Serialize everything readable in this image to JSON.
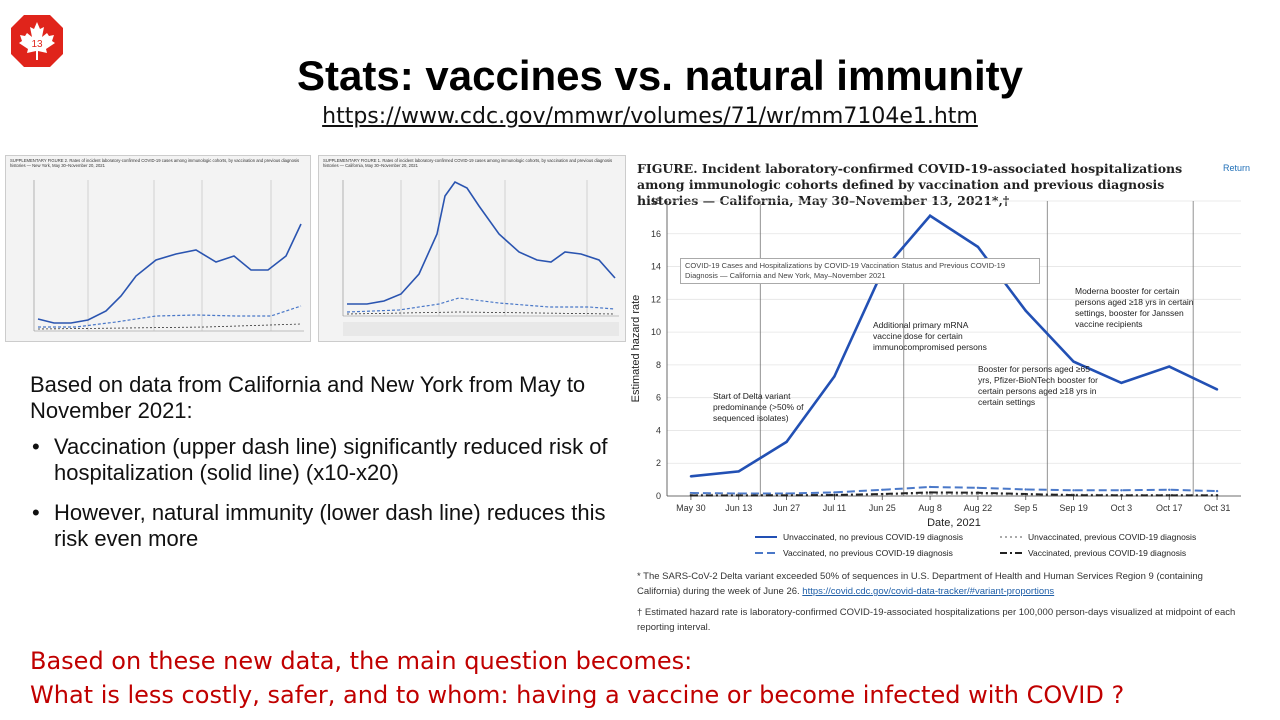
{
  "slide": {
    "number": "13",
    "title": "Stats: vaccines vs. natural immunity",
    "url": "https://www.cdc.gov/mmwr/volumes/71/wr/mm7104e1.htm",
    "summary_intro": "Based on data from California and New York from May to November 2021:",
    "bullets": [
      "Vaccination (upper dash line) significantly reduced risk of hospitalization (solid line) (x10-x20)",
      "However, natural immunity (lower dash line) reduces this risk even more"
    ],
    "bottom_line1": "Based on these new data, the main question becomes:",
    "bottom_line2": "What is less costly, safer, and to whom: having a vaccine or become infected with COVID ?",
    "accent_color": "#c00000",
    "logo_color": "#e0241b"
  },
  "thumbnails": [
    {
      "caption": "SUPPLEMENTARY FIGURE 2. Rates of incident laboratory-confirmed COVID-19 cases among immunologic cohorts, by vaccination and previous diagnosis histories — New York, May 30–November 20, 2021"
    },
    {
      "caption": "SUPPLEMENTARY FIGURE 1. Rates of incident laboratory-confirmed COVID-19 cases among immunologic cohorts, by vaccination and previous diagnosis histories — California, May 30–November 20, 2021"
    }
  ],
  "figure": {
    "title": "FIGURE. Incident laboratory-confirmed COVID-19-associated hospitalizations among immunologic cohorts defined by vaccination and previous diagnosis histories — California, May 30–November 13, 2021*,†",
    "return_label": "Return",
    "tooltip": "COVID-19 Cases and Hospitalizations by COVID-19 Vaccination Status and Previous COVID-19 Diagnosis — California and New York, May–November 2021",
    "annotations": [
      "Start of Delta variant predominance (>50% of sequenced isolates)",
      "Additional primary mRNA vaccine dose for certain immunocompromised persons",
      "Booster for persons aged ≥65 yrs, Pfizer-BioNTech booster for certain persons aged ≥18 yrs in certain settings",
      "Moderna booster for certain persons aged ≥18 yrs in certain settings, booster for Janssen vaccine recipients"
    ],
    "footnote1": "* The SARS-CoV-2 Delta variant exceeded 50% of sequences in U.S. Department of Health and Human Services Region 9 (containing California) during the week of June 26.",
    "footnote1_link": "https://covid.cdc.gov/covid-data-tracker/#variant-proportions",
    "footnote2": "† Estimated hazard rate is laboratory-confirmed COVID-19-associated hospitalizations per 100,000 person-days visualized at midpoint of each reporting interval."
  },
  "chart_data": {
    "type": "line",
    "xlabel": "Date, 2021",
    "ylabel": "Estimated hazard rate",
    "ylim": [
      0,
      18
    ],
    "yticks": [
      0,
      2,
      4,
      6,
      8,
      10,
      12,
      14,
      16,
      18
    ],
    "categories": [
      "May 30",
      "Jun 13",
      "Jun 27",
      "Jul 11",
      "Jun 25",
      "Aug 8",
      "Aug 22",
      "Sep 5",
      "Sep 19",
      "Oct 3",
      "Oct 17",
      "Oct 31"
    ],
    "x": [
      0.5,
      1.5,
      2.5,
      3.5,
      4.5,
      5.5,
      6.5,
      7.5,
      8.5,
      9.5,
      10.5,
      11.5
    ],
    "annotation_lines": [
      1.95,
      4.95,
      7.95,
      11.0
    ],
    "series": [
      {
        "name": "Unvaccinated, no previous COVID-19 diagnosis",
        "style": "solid",
        "color": "#2250b4",
        "values": [
          1.2,
          1.5,
          3.3,
          7.3,
          13.7,
          17.1,
          15.2,
          11.3,
          8.2,
          6.9,
          7.9,
          6.5
        ]
      },
      {
        "name": "Vaccinated, no previous COVID-19 diagnosis",
        "style": "dashed",
        "color": "#4a78c8",
        "values": [
          0.18,
          0.15,
          0.15,
          0.22,
          0.38,
          0.55,
          0.5,
          0.4,
          0.35,
          0.35,
          0.38,
          0.3
        ]
      },
      {
        "name": "Unvaccinated, previous COVID-19 diagnosis",
        "style": "dotted",
        "color": "#aaaaaa",
        "values": [
          0.08,
          0.07,
          0.06,
          0.08,
          0.1,
          0.14,
          0.12,
          0.1,
          0.08,
          0.06,
          0.06,
          0.05
        ]
      },
      {
        "name": "Vaccinated, previous COVID-19 diagnosis",
        "style": "dashdot",
        "color": "#222222",
        "values": [
          0.03,
          0.03,
          0.04,
          0.06,
          0.12,
          0.22,
          0.2,
          0.12,
          0.05,
          0.04,
          0.04,
          0.04
        ]
      }
    ]
  }
}
